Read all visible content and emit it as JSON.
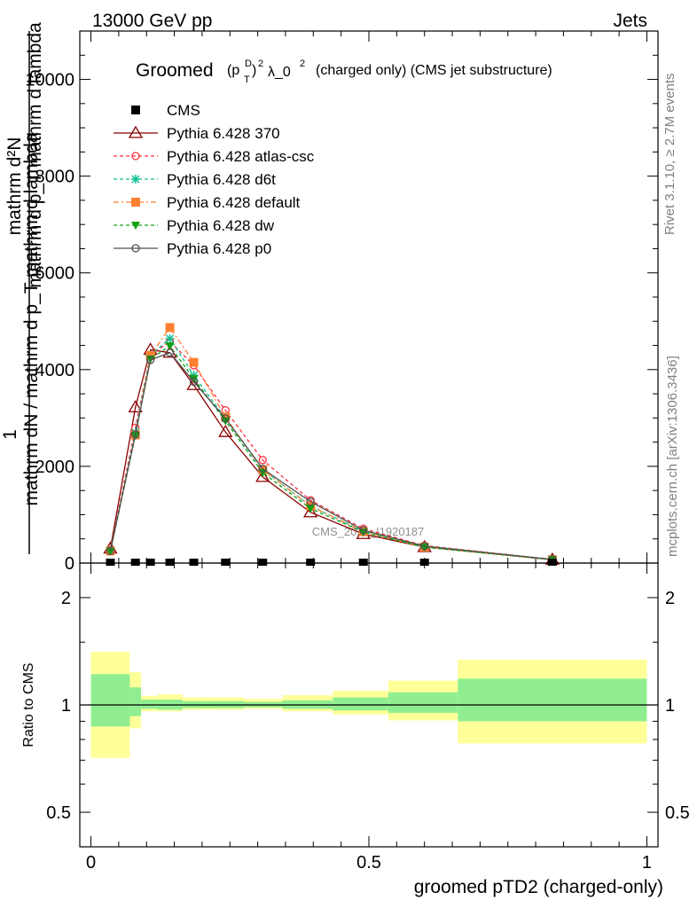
{
  "header": {
    "left": "13000 GeV pp",
    "right": "Jets"
  },
  "title": {
    "main": "Groomed",
    "p": "(p",
    "sup_d": "D",
    "sub_t": "T",
    "close": ")",
    "sq": "2",
    "lambda": "λ_0",
    "sq2": "2",
    "rest": "(charged only) (CMS jet substructure)"
  },
  "side_labels": {
    "rivet": "Rivet 3.1.10, ≥ 2.7M events",
    "mcplots": "mcplots.cern.ch [arXiv:1306.3436]"
  },
  "watermark": "CMS_2021_I1920187",
  "ylabel_main": {
    "one": "1",
    "denominator": "mathrm dN / mathrm d p_T mathrm d lambda",
    "numerator_1": "mathrm d²N",
    "numerator_2": "mathrm d p_T mathrm d lambda"
  },
  "ylabel_ratio": "Ratio to CMS",
  "xlabel": "groomed pTD2 (charged-only)",
  "legend": [
    {
      "label": "CMS",
      "color": "#000000",
      "marker": "square-filled",
      "dash": ""
    },
    {
      "label": "Pythia 6.428 370",
      "color": "#8b0000",
      "marker": "triangle-open",
      "dash": ""
    },
    {
      "label": "Pythia 6.428 atlas-csc",
      "color": "#ff3040",
      "marker": "circle-open",
      "dash": "4,3"
    },
    {
      "label": "Pythia 6.428 d6t",
      "color": "#10c090",
      "marker": "star",
      "dash": "4,3"
    },
    {
      "label": "Pythia 6.428 default",
      "color": "#ff8030",
      "marker": "square-filled",
      "dash": "6,3,2,3"
    },
    {
      "label": "Pythia 6.428 dw",
      "color": "#10a010",
      "marker": "triangle-down",
      "dash": "4,3"
    },
    {
      "label": "Pythia 6.428 p0",
      "color": "#505050",
      "marker": "circle-open",
      "dash": ""
    }
  ],
  "chart_data": {
    "type": "line",
    "x": [
      0.035,
      0.08,
      0.107,
      0.142,
      0.185,
      0.242,
      0.309,
      0.395,
      0.49,
      0.6,
      0.83
    ],
    "ylim_main": [
      0,
      11000
    ],
    "xlim": [
      -0.02,
      1.02
    ],
    "yticks_main": [
      2000,
      4000,
      6000,
      8000,
      10000
    ],
    "ylim_ratio": [
      0.4,
      2.5
    ],
    "yticks_ratio": [
      0.5,
      1,
      2
    ],
    "xticks": [
      0,
      0.5,
      1
    ],
    "cms": [
      0,
      0,
      0,
      0,
      0,
      0,
      0,
      0,
      0,
      0,
      0
    ],
    "series": [
      {
        "name": "Pythia 6.428 370",
        "values": [
          300,
          3220,
          4410,
          4350,
          3680,
          2710,
          1780,
          1050,
          600,
          330,
          70
        ]
      },
      {
        "name": "Pythia 6.428 atlas-csc",
        "values": [
          270,
          2800,
          4300,
          4580,
          4090,
          3160,
          2130,
          1300,
          710,
          360,
          75
        ]
      },
      {
        "name": "Pythia 6.428 d6t",
        "values": [
          260,
          2700,
          4300,
          4640,
          3880,
          2990,
          1930,
          1180,
          660,
          330,
          70
        ]
      },
      {
        "name": "Pythia 6.428 default",
        "values": [
          250,
          2650,
          4290,
          4870,
          4150,
          3020,
          1930,
          1180,
          650,
          330,
          70
        ]
      },
      {
        "name": "Pythia 6.428 dw",
        "values": [
          250,
          2640,
          4220,
          4490,
          3810,
          2940,
          1870,
          1130,
          640,
          330,
          70
        ]
      },
      {
        "name": "Pythia 6.428 p0",
        "values": [
          250,
          2660,
          4200,
          4350,
          3750,
          2990,
          1950,
          1270,
          680,
          350,
          75
        ]
      }
    ],
    "ratio_bands": {
      "edges": [
        0.0,
        0.07,
        0.09,
        0.12,
        0.165,
        0.21,
        0.275,
        0.345,
        0.435,
        0.535,
        0.66,
        1.0
      ],
      "inner": [
        [
          0.87,
          1.22
        ],
        [
          0.93,
          1.12
        ],
        [
          0.975,
          1.035
        ],
        [
          0.97,
          1.035
        ],
        [
          0.98,
          1.025
        ],
        [
          0.98,
          1.025
        ],
        [
          0.985,
          1.02
        ],
        [
          0.975,
          1.03
        ],
        [
          0.965,
          1.05
        ],
        [
          0.95,
          1.085
        ],
        [
          0.9,
          1.185
        ]
      ],
      "outer": [
        [
          0.71,
          1.41
        ],
        [
          0.86,
          1.235
        ],
        [
          0.96,
          1.06
        ],
        [
          0.96,
          1.07
        ],
        [
          0.97,
          1.05
        ],
        [
          0.97,
          1.05
        ],
        [
          0.975,
          1.04
        ],
        [
          0.96,
          1.065
        ],
        [
          0.94,
          1.095
        ],
        [
          0.905,
          1.17
        ],
        [
          0.78,
          1.34
        ]
      ],
      "inner_color": "#90ee90",
      "outer_color": "#ffff99"
    }
  }
}
